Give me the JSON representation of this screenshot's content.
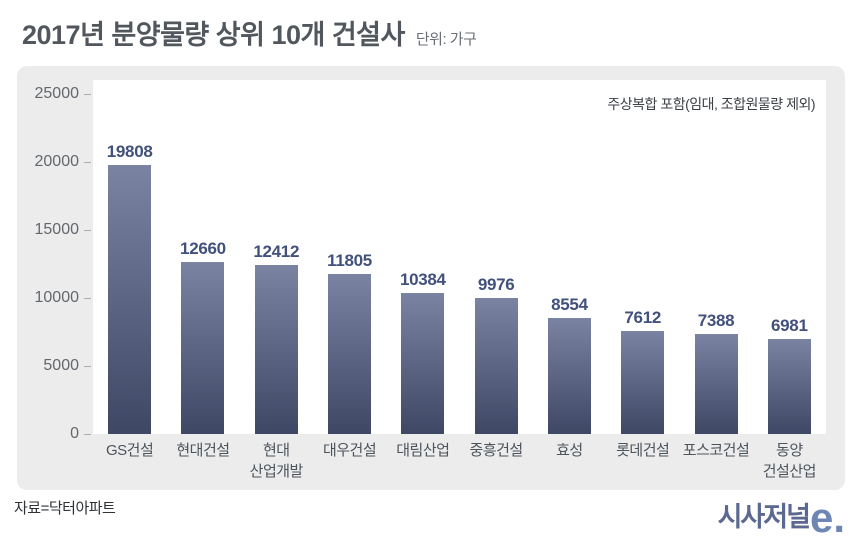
{
  "header": {
    "title": "2017년 분양물량 상위 10개 건설사",
    "unit_label": "단위: 가구"
  },
  "chart_data": {
    "type": "bar",
    "title": "2017년 분양물량 상위 10개 건설사",
    "unit": "가구",
    "annotation": "주상복합 포함(임대, 조합원물량 제외)",
    "categories": [
      "GS건설",
      "현대건설",
      "현대\n산업개발",
      "대우건설",
      "대림산업",
      "중흥건설",
      "효성",
      "롯데건설",
      "포스코건설",
      "동양\n건설산업"
    ],
    "values": [
      19808,
      12660,
      12412,
      11805,
      10384,
      9976,
      8554,
      7612,
      7388,
      6981
    ],
    "ylim": [
      0,
      25000
    ],
    "yticks": [
      0,
      5000,
      10000,
      15000,
      20000,
      25000
    ],
    "grid": false,
    "legend": false,
    "colors": {
      "bar_gradient_top": "#7a84a2",
      "bar_gradient_bottom": "#3e4764",
      "value_label": "#42507c",
      "panel_background": "#ececec",
      "plot_background": "#ffffff"
    }
  },
  "footer": {
    "source": "자료=닥터아파트",
    "logo_text": "시사저널",
    "logo_e": "e."
  }
}
